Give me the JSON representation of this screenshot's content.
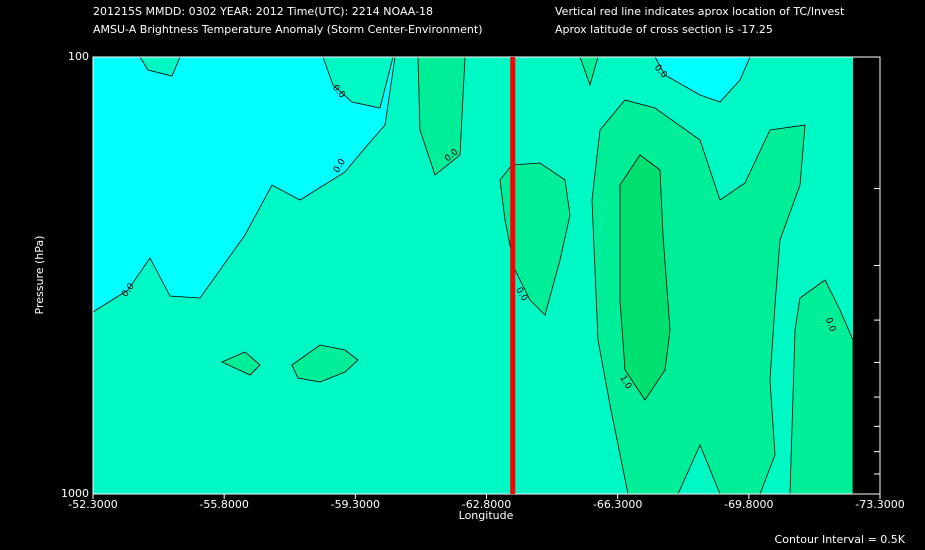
{
  "header": {
    "line1": "201215S  MMDD: 0302 YEAR: 2012 Time(UTC): 2214 NOAA-18",
    "line2": "AMSU-A Brightness Temperature Anomaly (Storm Center-Environment)",
    "note1": "Vertical red line indicates aprox location of TC/Invest",
    "note2": "Aprox latitude of cross section is -17.25"
  },
  "chart_data": {
    "type": "contour",
    "x_label": "Longitude",
    "y_label": "Pressure (hPa)",
    "xlim": [
      -52.3,
      -73.3
    ],
    "xticks": [
      {
        "value": -52.3,
        "label": "-52.3000"
      },
      {
        "value": -55.8,
        "label": "-55.8000"
      },
      {
        "value": -59.3,
        "label": "-59.3000"
      },
      {
        "value": -62.8,
        "label": "-62.8000"
      },
      {
        "value": -66.3,
        "label": "-66.3000"
      },
      {
        "value": -69.8,
        "label": "-69.8000"
      },
      {
        "value": -73.3,
        "label": "-73.3000"
      }
    ],
    "ylim": [
      100,
      1000
    ],
    "y_log": true,
    "y_inverted": true,
    "yticks": [
      100,
      1000
    ],
    "y_minor_ticks": [
      200,
      300,
      400,
      500,
      600,
      700,
      800,
      900
    ],
    "tc_longitude": -63.5,
    "tc_line_color": "#ff0000",
    "contour_labels": [
      "0.0",
      "0.0",
      "0.0",
      "0.0",
      "0.0",
      "0.0",
      "0.0",
      "1.0"
    ],
    "footer": "Contour Interval = 0.5K"
  }
}
